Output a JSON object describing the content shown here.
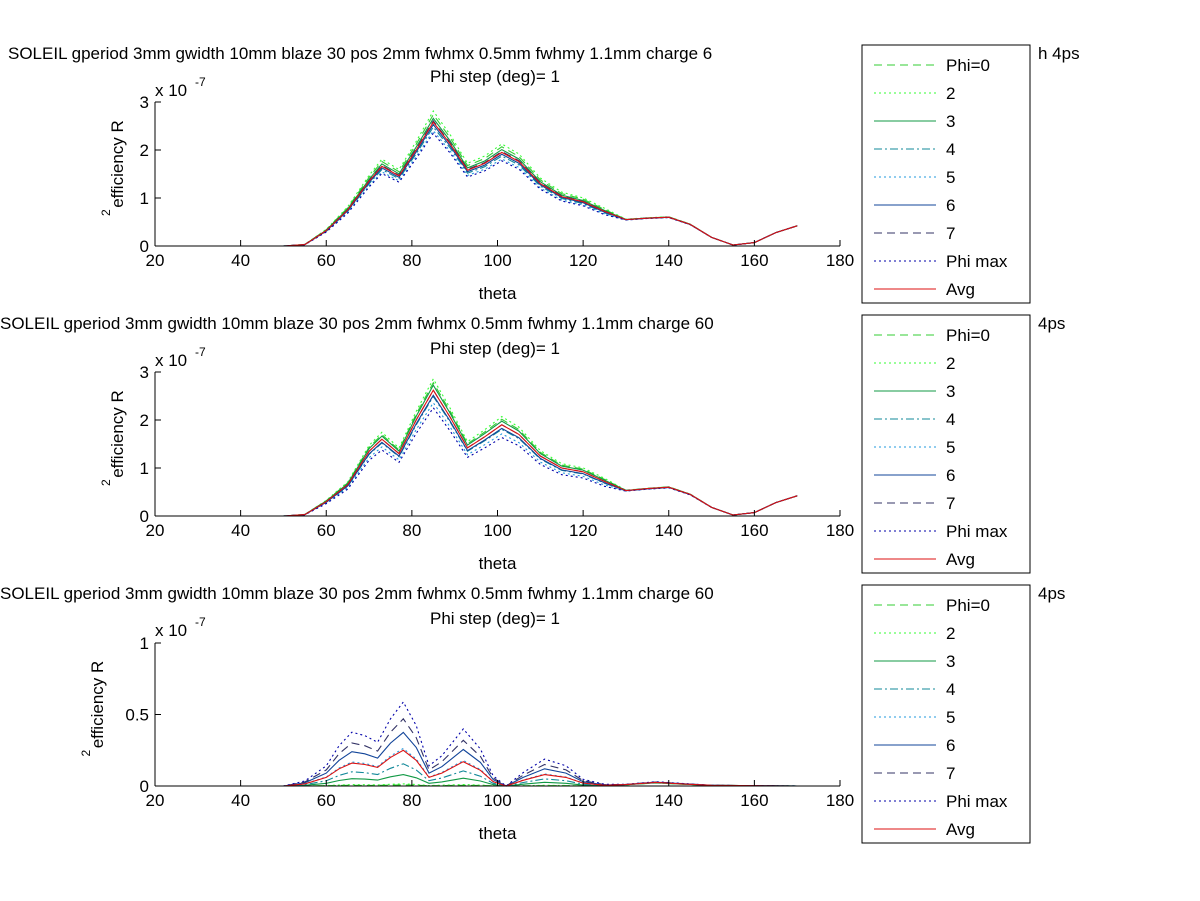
{
  "colors": {
    "phi0": "#33cc33",
    "phi2": "#33ff33",
    "phi3": "#119944",
    "phi4": "#118899",
    "phi5": "#2299dd",
    "phi6": "#114499",
    "phi7": "#333366",
    "phimax": "#0000aa",
    "avg": "#dd1111"
  },
  "chart_data": [
    {
      "type": "line",
      "title": "SOLEIL gperiod 3mm gwidth 10mm blaze 30 pos 2mm fwhmx 0.5mm fwhmy 1.1mm charge 6",
      "title_suffix": "h 4ps",
      "subtitle": "Phi step (deg)= 1",
      "xlabel": "theta",
      "ylabel": "efficiency R",
      "ylabel_sup": "2",
      "multiplier": "x 10",
      "multiplier_exp": "-7",
      "xlim": [
        20,
        180
      ],
      "ylim": [
        0,
        3
      ],
      "xticks": [
        "20",
        "40",
        "60",
        "80",
        "100",
        "120",
        "140",
        "160",
        "180"
      ],
      "yticks": [
        "0",
        "1",
        "2",
        "3"
      ],
      "ytick_values": [
        0,
        1,
        2,
        3
      ],
      "legend": [
        "Phi=0",
        "2",
        "3",
        "4",
        "5",
        "6",
        "7",
        "Phi max",
        "Avg"
      ],
      "avg": [
        [
          30,
          0
        ],
        [
          40,
          0
        ],
        [
          50,
          0
        ],
        [
          55,
          0.03
        ],
        [
          60,
          0.32
        ],
        [
          65,
          0.75
        ],
        [
          70,
          1.35
        ],
        [
          73,
          1.66
        ],
        [
          77,
          1.46
        ],
        [
          81,
          2.0
        ],
        [
          85,
          2.58
        ],
        [
          89,
          2.12
        ],
        [
          93,
          1.58
        ],
        [
          97,
          1.72
        ],
        [
          101,
          1.95
        ],
        [
          105,
          1.76
        ],
        [
          110,
          1.3
        ],
        [
          115,
          1.03
        ],
        [
          120,
          0.92
        ],
        [
          125,
          0.72
        ],
        [
          130,
          0.55
        ],
        [
          135,
          0.58
        ],
        [
          140,
          0.6
        ],
        [
          145,
          0.45
        ],
        [
          150,
          0.18
        ],
        [
          155,
          0.02
        ],
        [
          160,
          0.07
        ],
        [
          165,
          0.28
        ],
        [
          170,
          0.42
        ]
      ],
      "peak_scale": [
        1.06,
        1.09,
        1.03,
        0.96,
        0.93,
        0.98,
        1.01,
        0.91,
        1.0
      ],
      "series_styles": [
        "dash",
        "dot",
        "solid",
        "dashdot",
        "dot",
        "solid",
        "dash",
        "dot",
        "solid"
      ]
    },
    {
      "type": "line",
      "title": "SOLEIL gperiod 3mm gwidth 10mm blaze 30 pos 2mm fwhmx 0.5mm fwhmy 1.1mm charge 60",
      "title_suffix": "4ps",
      "subtitle": "Phi step (deg)= 1",
      "xlabel": "theta",
      "ylabel": "efficiency R",
      "ylabel_sup": "2",
      "multiplier": "x 10",
      "multiplier_exp": "-7",
      "xlim": [
        20,
        180
      ],
      "ylim": [
        0,
        3
      ],
      "xticks": [
        "20",
        "40",
        "60",
        "80",
        "100",
        "120",
        "140",
        "160",
        "180"
      ],
      "yticks": [
        "0",
        "1",
        "2",
        "3"
      ],
      "ytick_values": [
        0,
        1,
        2,
        3
      ],
      "legend": [
        "Phi=0",
        "2",
        "3",
        "4",
        "5",
        "6",
        "7",
        "Phi max",
        "Avg"
      ],
      "avg": [
        [
          30,
          0
        ],
        [
          40,
          0
        ],
        [
          50,
          0
        ],
        [
          55,
          0.03
        ],
        [
          60,
          0.3
        ],
        [
          65,
          0.65
        ],
        [
          70,
          1.35
        ],
        [
          73,
          1.6
        ],
        [
          77,
          1.3
        ],
        [
          81,
          2.0
        ],
        [
          85,
          2.62
        ],
        [
          89,
          2.05
        ],
        [
          93,
          1.42
        ],
        [
          97,
          1.65
        ],
        [
          101,
          1.9
        ],
        [
          105,
          1.7
        ],
        [
          110,
          1.25
        ],
        [
          115,
          1.0
        ],
        [
          120,
          0.92
        ],
        [
          125,
          0.72
        ],
        [
          130,
          0.53
        ],
        [
          135,
          0.57
        ],
        [
          140,
          0.6
        ],
        [
          145,
          0.45
        ],
        [
          150,
          0.18
        ],
        [
          155,
          0.02
        ],
        [
          160,
          0.07
        ],
        [
          165,
          0.28
        ],
        [
          170,
          0.42
        ]
      ],
      "peak_scale": [
        1.06,
        1.09,
        1.04,
        0.95,
        0.9,
        0.96,
        1.0,
        0.86,
        1.0
      ],
      "series_styles": [
        "dash",
        "dot",
        "solid",
        "dashdot",
        "dot",
        "solid",
        "dash",
        "dot",
        "solid"
      ]
    },
    {
      "type": "line",
      "title": "SOLEIL gperiod 3mm gwidth 10mm blaze 30 pos 2mm fwhmx 0.5mm fwhmy 1.1mm charge 60",
      "title_suffix": "4ps",
      "subtitle": "Phi step (deg)= 1",
      "xlabel": "theta",
      "ylabel": "efficiency R",
      "ylabel_sup": "2",
      "multiplier": "x 10",
      "multiplier_exp": "-7",
      "xlim": [
        20,
        180
      ],
      "ylim": [
        0,
        1
      ],
      "xticks": [
        "20",
        "40",
        "60",
        "80",
        "100",
        "120",
        "140",
        "160",
        "180"
      ],
      "yticks": [
        "0",
        "0.5",
        "1"
      ],
      "ytick_values": [
        0,
        0.5,
        1
      ],
      "legend": [
        "Phi=0",
        "2",
        "3",
        "4",
        "5",
        "6",
        "7",
        "Phi max",
        "Avg"
      ],
      "avg": [
        [
          30,
          0
        ],
        [
          40,
          0
        ],
        [
          50,
          0
        ],
        [
          55,
          0.015
        ],
        [
          60,
          0.06
        ],
        [
          63,
          0.12
        ],
        [
          66,
          0.16
        ],
        [
          69,
          0.15
        ],
        [
          72,
          0.13
        ],
        [
          75,
          0.2
        ],
        [
          78,
          0.25
        ],
        [
          81,
          0.18
        ],
        [
          84,
          0.06
        ],
        [
          87,
          0.09
        ],
        [
          92,
          0.17
        ],
        [
          96,
          0.11
        ],
        [
          99,
          0.03
        ],
        [
          102,
          0.0
        ],
        [
          106,
          0.04
        ],
        [
          111,
          0.08
        ],
        [
          116,
          0.06
        ],
        [
          120,
          0.02
        ],
        [
          125,
          0.005
        ],
        [
          130,
          0.01
        ],
        [
          137,
          0.025
        ],
        [
          143,
          0.015
        ],
        [
          150,
          0.005
        ],
        [
          160,
          0.002
        ],
        [
          170,
          0.0
        ]
      ],
      "peak_scale": [
        0.03,
        0.06,
        0.32,
        0.62,
        1.05,
        1.5,
        1.88,
        2.35,
        1.0
      ],
      "series_styles": [
        "dash",
        "dot",
        "solid",
        "dashdot",
        "dot",
        "solid",
        "dash",
        "dot",
        "solid"
      ]
    }
  ]
}
